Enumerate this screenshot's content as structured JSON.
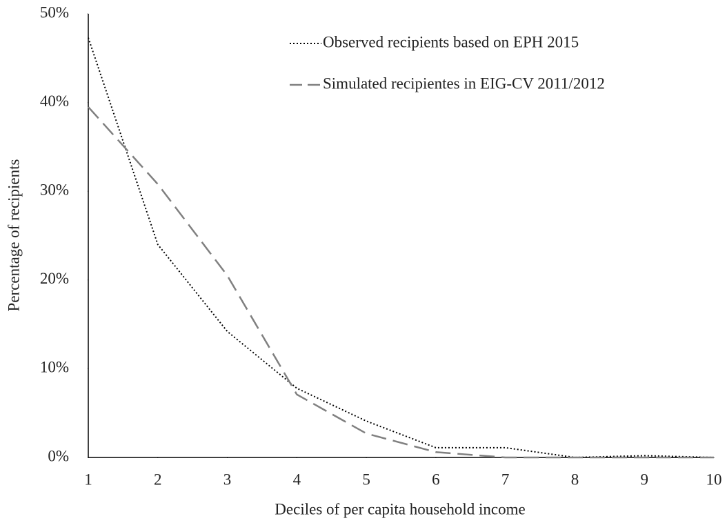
{
  "chart_data": {
    "type": "line",
    "x_label": "Deciles of per capita household income",
    "y_label": "Percentage of recipients",
    "x": [
      1,
      2,
      3,
      4,
      5,
      6,
      7,
      8,
      9,
      10
    ],
    "series": [
      {
        "name": "Observed recipients based on EPH 2015",
        "color": "#000000",
        "style": "dotted",
        "values": [
          47.3,
          24,
          14.2,
          7.8,
          4.1,
          1.1,
          1.1,
          0,
          0.2,
          0
        ]
      },
      {
        "name": "Simulated recipientes in EIG-CV 2011/2012",
        "color": "#808080",
        "style": "dashed",
        "values": [
          39.5,
          30.8,
          20.5,
          7.1,
          2.7,
          0.6,
          0,
          0,
          0,
          0
        ]
      }
    ],
    "xlim": [
      1,
      10
    ],
    "xticks": [
      1,
      2,
      3,
      4,
      5,
      6,
      7,
      8,
      9,
      10
    ],
    "ylim": [
      0,
      50
    ],
    "yticks": [
      {
        "value": 0,
        "label": "0%"
      },
      {
        "value": 10,
        "label": "10%"
      },
      {
        "value": 20,
        "label": "20%"
      },
      {
        "value": 30,
        "label": "30%"
      },
      {
        "value": 40,
        "label": "40%"
      },
      {
        "value": 50,
        "label": "50%"
      }
    ],
    "grid": false,
    "legend": "top-right"
  }
}
